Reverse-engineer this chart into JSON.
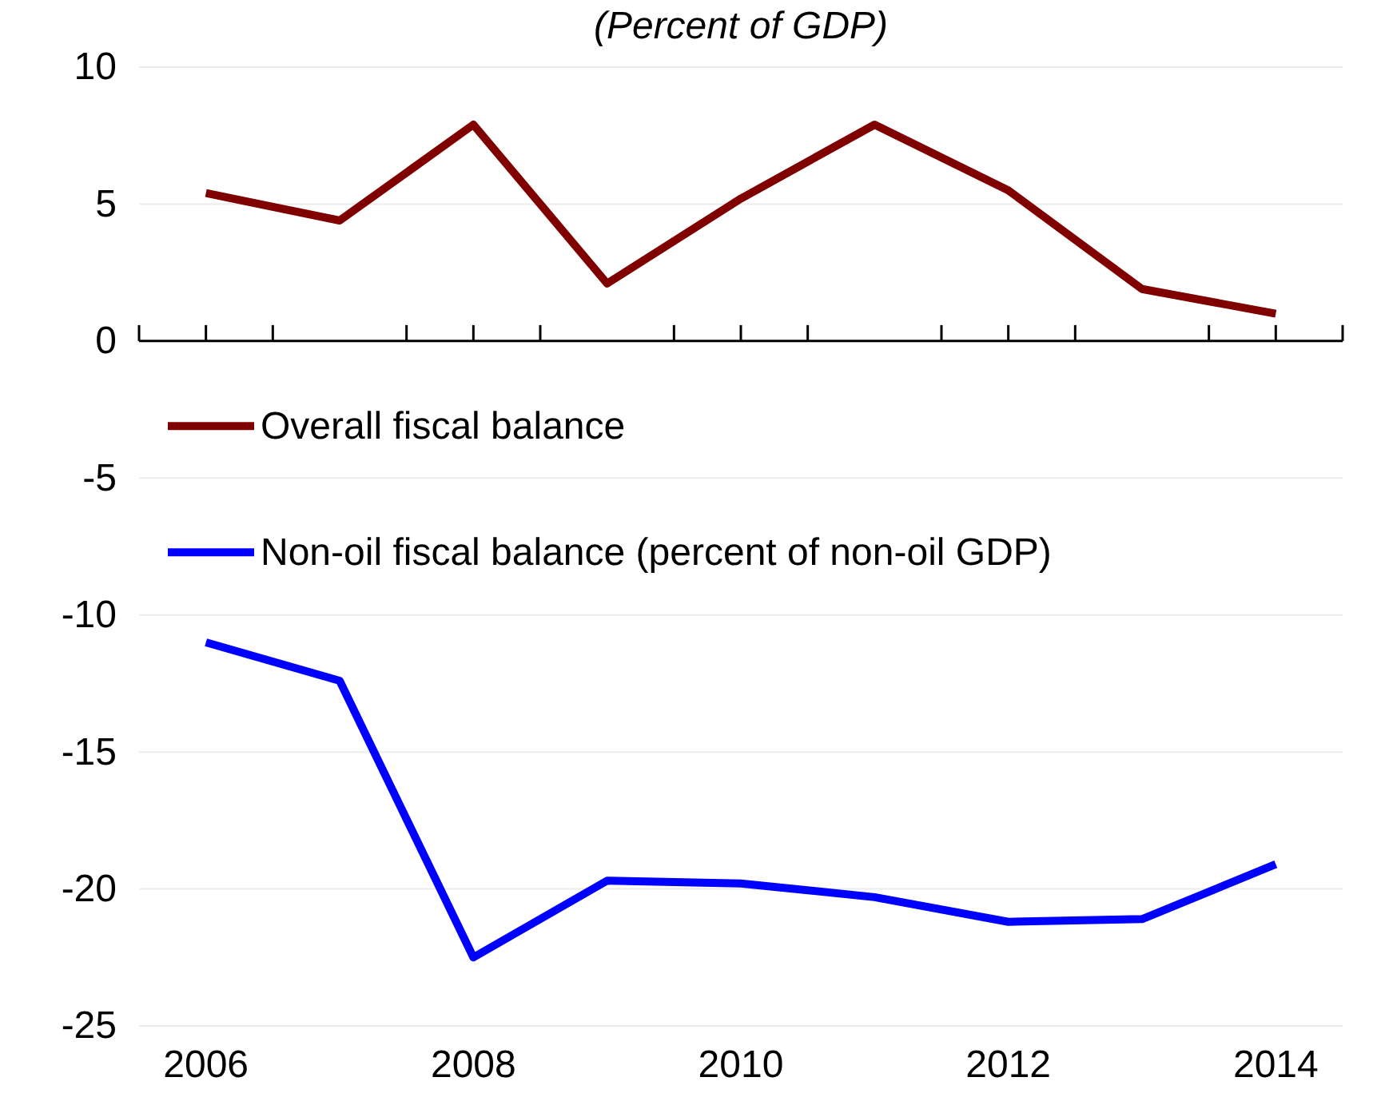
{
  "chart_data": {
    "type": "line",
    "subtitle": "(Percent of GDP)",
    "x": [
      2006,
      2007,
      2008,
      2009,
      2010,
      2011,
      2012,
      2013,
      2014
    ],
    "series": [
      {
        "name": "Overall fiscal balance",
        "color": "#800000",
        "values": [
          5.4,
          4.4,
          7.9,
          2.1,
          5.2,
          7.9,
          5.5,
          1.9,
          1.0
        ]
      },
      {
        "name": "Non-oil fiscal balance (percent of non-oil GDP)",
        "color": "#0000ff",
        "values": [
          -11.0,
          -12.4,
          -22.5,
          -19.7,
          -19.8,
          -20.3,
          -21.2,
          -21.1,
          -19.1
        ]
      }
    ],
    "xlim": [
      2005.5,
      2014.5
    ],
    "xticks": [
      {
        "value": 2005.5,
        "label": null
      },
      2006,
      {
        "value": 2006.5,
        "label": null
      },
      {
        "value": 2007.5,
        "label": null
      },
      2008,
      {
        "value": 2008.5,
        "label": null
      },
      {
        "value": 2009.5,
        "label": null
      },
      2010,
      {
        "value": 2010.5,
        "label": null
      },
      {
        "value": 2011.5,
        "label": null
      },
      2012,
      {
        "value": 2012.5,
        "label": null
      },
      {
        "value": 2013.5,
        "label": null
      },
      2014,
      {
        "value": 2014.5,
        "label": null
      }
    ],
    "ylim": [
      -25,
      10
    ],
    "yticks": [
      -25,
      -20,
      -15,
      -10,
      -5,
      0,
      5,
      10
    ],
    "grid": "y",
    "legend": "left",
    "marker": "none",
    "line_style": "solid"
  }
}
